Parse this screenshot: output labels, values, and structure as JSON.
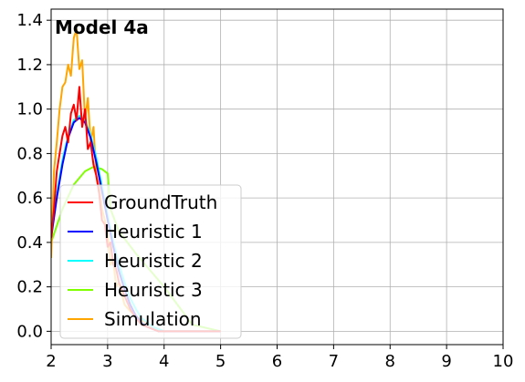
{
  "chart_data": {
    "type": "line",
    "title": "",
    "annotation": "Model 4a",
    "xlabel": "",
    "ylabel": "",
    "xlim": [
      2,
      10
    ],
    "ylim": [
      -0.06,
      1.45
    ],
    "xticks": [
      2,
      3,
      4,
      5,
      6,
      7,
      8,
      9,
      10
    ],
    "xtick_labels": [
      "2",
      "3",
      "4",
      "5",
      "6",
      "7",
      "8",
      "9",
      "10"
    ],
    "yticks": [
      0.0,
      0.2,
      0.4,
      0.6,
      0.8,
      1.0,
      1.2,
      1.4
    ],
    "ytick_labels": [
      "0.0",
      "0.2",
      "0.4",
      "0.6",
      "0.8",
      "1.0",
      "1.2",
      "1.4"
    ],
    "grid": true,
    "legend_position": "lower-left",
    "series": [
      {
        "name": "Heuristic 3",
        "color": "#7fff00",
        "x": [
          2.0,
          2.2,
          2.4,
          2.6,
          2.75,
          2.9,
          3.0,
          3.05,
          3.2,
          3.5,
          3.8,
          4.0,
          4.5,
          5.0
        ],
        "y": [
          0.4,
          0.55,
          0.66,
          0.72,
          0.74,
          0.73,
          0.71,
          0.55,
          0.45,
          0.35,
          0.26,
          0.2,
          0.03,
          0.0
        ]
      },
      {
        "name": "Simulation",
        "color": "#ffa500",
        "x": [
          2.0,
          2.05,
          2.1,
          2.15,
          2.2,
          2.25,
          2.3,
          2.35,
          2.4,
          2.45,
          2.5,
          2.55,
          2.6,
          2.65,
          2.7,
          2.75,
          2.8,
          2.85,
          2.9,
          2.95,
          3.0,
          3.05,
          3.1,
          3.15,
          3.2,
          3.3,
          3.4,
          3.6,
          3.8,
          4.0,
          4.5,
          5.0
        ],
        "y": [
          0.33,
          0.72,
          0.85,
          1.0,
          1.1,
          1.12,
          1.2,
          1.15,
          1.32,
          1.36,
          1.18,
          1.22,
          0.95,
          1.05,
          0.85,
          0.92,
          0.7,
          0.65,
          0.55,
          0.5,
          0.45,
          0.3,
          0.32,
          0.2,
          0.22,
          0.12,
          0.09,
          0.05,
          0.02,
          0.0,
          0.0,
          0.0
        ]
      },
      {
        "name": "Heuristic 2",
        "color": "#00ffff",
        "x": [
          2.0,
          2.1,
          2.2,
          2.3,
          2.4,
          2.5,
          2.6,
          2.7,
          2.8,
          2.9,
          3.0,
          3.1,
          3.2,
          3.3,
          3.4,
          3.5,
          3.6,
          3.7,
          3.8,
          3.9,
          4.0,
          4.5,
          5.0
        ],
        "y": [
          0.45,
          0.62,
          0.77,
          0.88,
          0.95,
          0.97,
          0.95,
          0.88,
          0.78,
          0.65,
          0.52,
          0.4,
          0.3,
          0.22,
          0.15,
          0.1,
          0.06,
          0.04,
          0.02,
          0.01,
          0.0,
          0.0,
          0.0
        ]
      },
      {
        "name": "Heuristic 1",
        "color": "#0000ff",
        "x": [
          2.0,
          2.1,
          2.2,
          2.3,
          2.4,
          2.5,
          2.6,
          2.7,
          2.8,
          2.9,
          3.0,
          3.1,
          3.2,
          3.3,
          3.4,
          3.5,
          3.6,
          3.7,
          3.8,
          3.9,
          4.0,
          4.5,
          5.0
        ],
        "y": [
          0.42,
          0.6,
          0.75,
          0.87,
          0.94,
          0.96,
          0.94,
          0.87,
          0.76,
          0.63,
          0.5,
          0.38,
          0.27,
          0.19,
          0.12,
          0.07,
          0.04,
          0.02,
          0.01,
          0.0,
          0.0,
          0.0,
          0.0
        ]
      },
      {
        "name": "GroundTruth",
        "color": "#ff0000",
        "x": [
          2.0,
          2.05,
          2.1,
          2.15,
          2.2,
          2.25,
          2.3,
          2.35,
          2.4,
          2.45,
          2.5,
          2.55,
          2.6,
          2.65,
          2.7,
          2.75,
          2.8,
          2.85,
          2.9,
          2.95,
          3.0,
          3.05,
          3.1,
          3.15,
          3.2,
          3.3,
          3.4,
          3.5,
          3.6,
          3.7,
          3.8,
          3.9,
          4.0,
          4.5,
          5.0
        ],
        "y": [
          0.42,
          0.55,
          0.72,
          0.8,
          0.88,
          0.92,
          0.85,
          0.98,
          1.02,
          0.95,
          1.1,
          0.92,
          1.0,
          0.82,
          0.85,
          0.75,
          0.7,
          0.62,
          0.5,
          0.48,
          0.38,
          0.4,
          0.3,
          0.28,
          0.22,
          0.16,
          0.1,
          0.06,
          0.03,
          0.02,
          0.01,
          0.0,
          0.0,
          0.0,
          0.0
        ]
      }
    ],
    "legend_order": [
      "GroundTruth",
      "Heuristic 1",
      "Heuristic 2",
      "Heuristic 3",
      "Simulation"
    ]
  }
}
